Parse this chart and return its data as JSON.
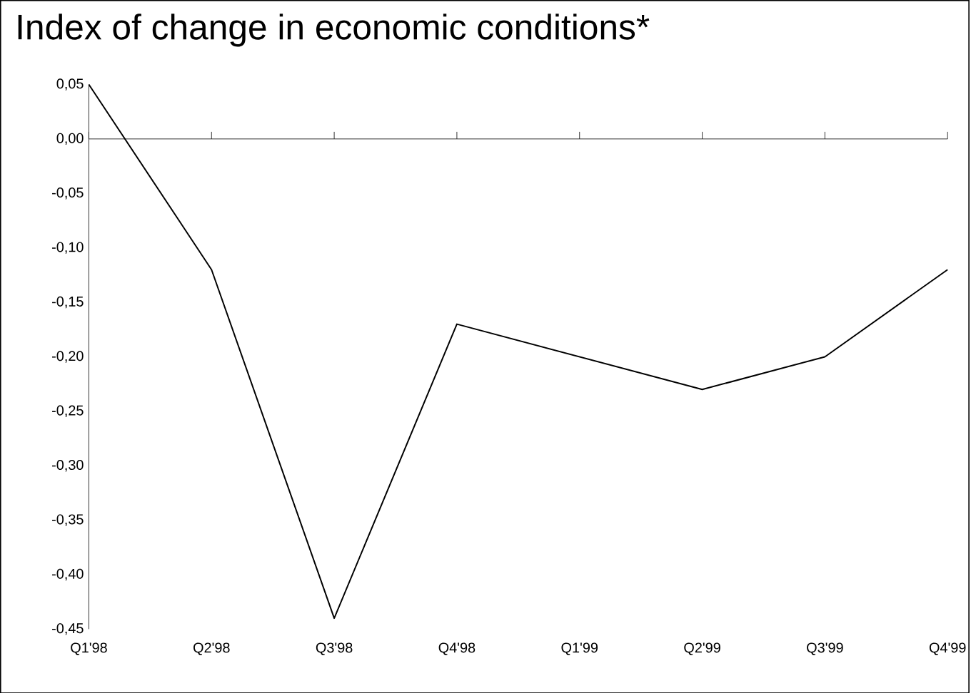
{
  "chart_data": {
    "type": "line",
    "title": "Index of change in economic conditions*",
    "categories": [
      "Q1'98",
      "Q2'98",
      "Q3'98",
      "Q4'98",
      "Q1'99",
      "Q2'99",
      "Q3'99",
      "Q4'99"
    ],
    "values": [
      0.05,
      -0.12,
      -0.44,
      -0.17,
      -0.2,
      -0.23,
      -0.2,
      -0.12
    ],
    "color": "#000000",
    "ylim": [
      -0.45,
      0.05
    ],
    "yticks": [
      {
        "value": 0.05,
        "label": "0,05"
      },
      {
        "value": 0,
        "label": "0,00"
      },
      {
        "value": -0.05,
        "label": "-0,05"
      },
      {
        "value": -0.1,
        "label": "-0,10"
      },
      {
        "value": -0.15,
        "label": "-0,15"
      },
      {
        "value": -0.2,
        "label": "-0,20"
      },
      {
        "value": -0.25,
        "label": "-0,25"
      },
      {
        "value": -0.3,
        "label": "-0,30"
      },
      {
        "value": -0.35,
        "label": "-0,35"
      },
      {
        "value": -0.4,
        "label": "-0,40"
      },
      {
        "value": -0.45,
        "label": "-0,45"
      }
    ],
    "ref_lines": [
      {
        "axis": "y",
        "value": 0,
        "color": "#000000"
      }
    ],
    "grid": false,
    "marker": "none",
    "line_style": "solid"
  }
}
